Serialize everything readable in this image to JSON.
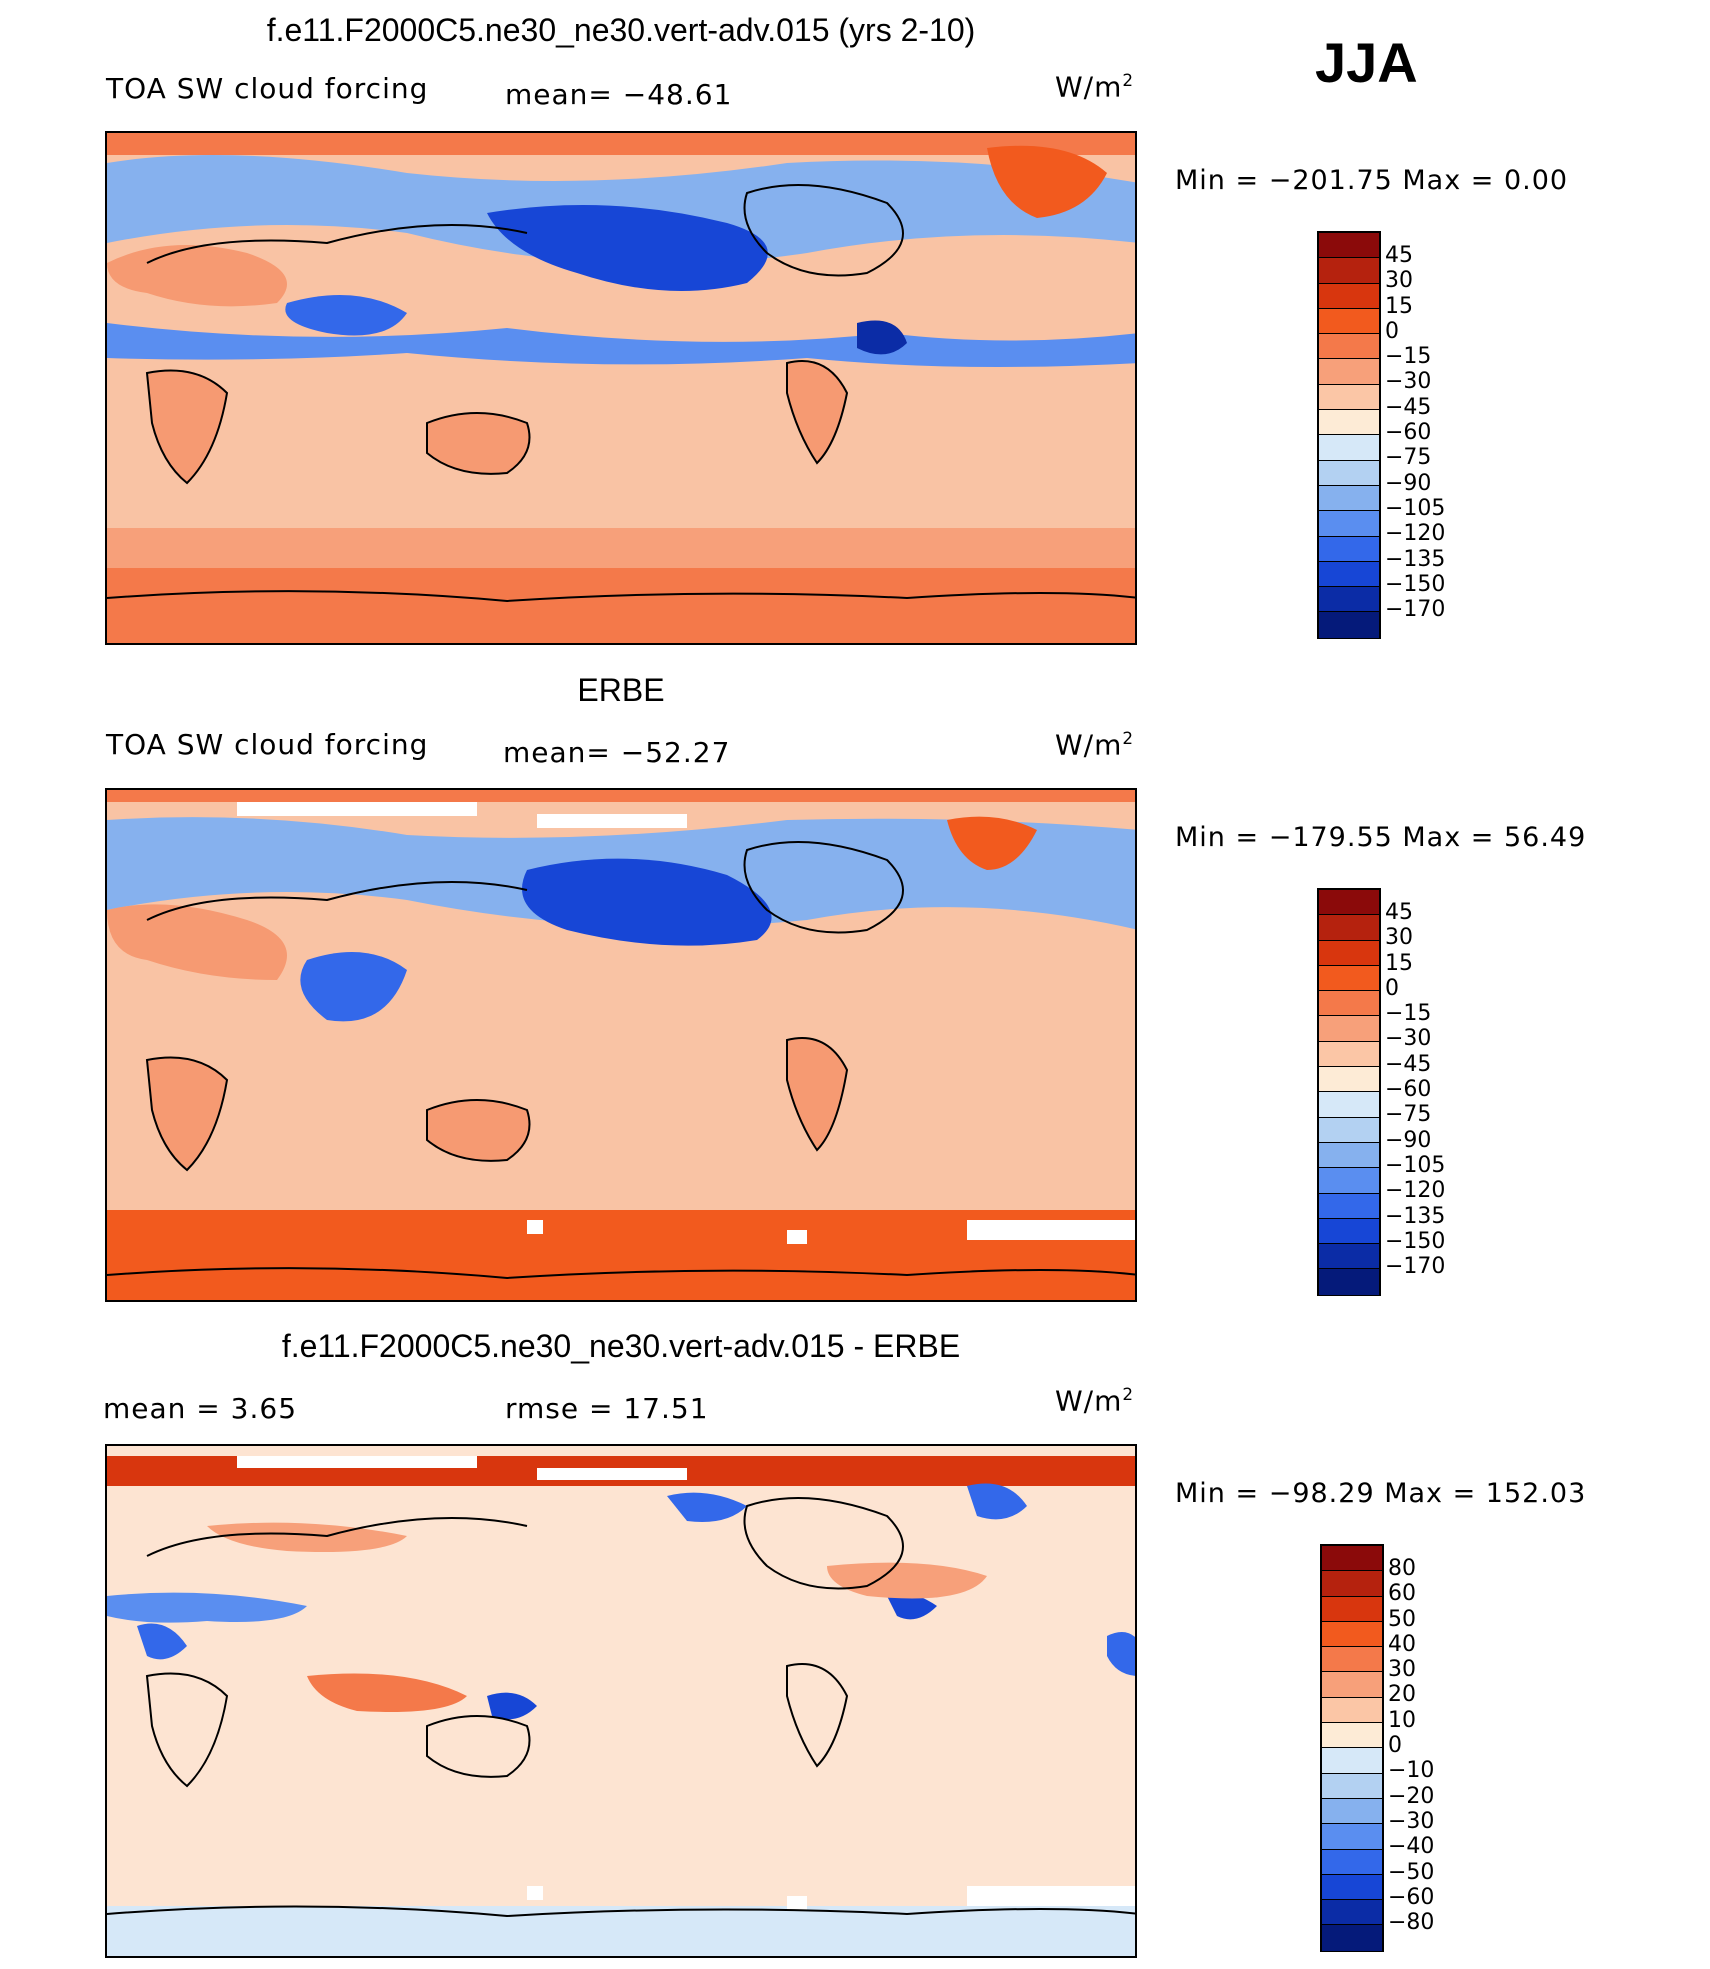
{
  "season": "JJA",
  "panels": [
    {
      "title": "f.e11.F2000C5.ne30_ne30.vert-adv.015 (yrs 2-10)",
      "left_label": "TOA SW cloud forcing",
      "center_label": "mean= −48.61",
      "units": "W/m",
      "units_sup": "2",
      "minmax": "Min = −201.75 Max = 0.00",
      "colorbar_labels": [
        "45",
        "30",
        "15",
        "0",
        "−15",
        "−30",
        "−45",
        "−60",
        "−75",
        "−90",
        "−105",
        "−120",
        "−135",
        "−150",
        "−170"
      ],
      "colorbar_colors": [
        "#8b0a0a",
        "#b5220e",
        "#d8360e",
        "#f25a1e",
        "#f4794a",
        "#f7a07a",
        "#fbc6a6",
        "#fdebd6",
        "#d6e8f8",
        "#b3d1f2",
        "#86b1ee",
        "#5a8ef0",
        "#3368ea",
        "#1746d6",
        "#0b2ca6",
        "#051a7a"
      ],
      "ocean_color": "#f9c3a4",
      "land_color": "#f69a72"
    },
    {
      "title": "ERBE",
      "left_label": "TOA SW cloud forcing",
      "center_label": "mean= −52.27",
      "units": "W/m",
      "units_sup": "2",
      "minmax": "Min = −179.55 Max = 56.49",
      "colorbar_labels": [
        "45",
        "30",
        "15",
        "0",
        "−15",
        "−30",
        "−45",
        "−60",
        "−75",
        "−90",
        "−105",
        "−120",
        "−135",
        "−150",
        "−170"
      ],
      "colorbar_colors": [
        "#8b0a0a",
        "#b5220e",
        "#d8360e",
        "#f25a1e",
        "#f4794a",
        "#f7a07a",
        "#fbc6a6",
        "#fdebd6",
        "#d6e8f8",
        "#b3d1f2",
        "#86b1ee",
        "#5a8ef0",
        "#3368ea",
        "#1746d6",
        "#0b2ca6",
        "#051a7a"
      ],
      "ocean_color": "#f9c3a4",
      "land_color": "#f69a72"
    },
    {
      "title": "f.e11.F2000C5.ne30_ne30.vert-adv.015 - ERBE",
      "left_label": "mean = 3.65",
      "center_label": "rmse = 17.51",
      "units": "W/m",
      "units_sup": "2",
      "minmax": "Min = −98.29 Max = 152.03",
      "colorbar_labels": [
        "80",
        "60",
        "50",
        "40",
        "30",
        "20",
        "10",
        "0",
        "−10",
        "−20",
        "−30",
        "−40",
        "−50",
        "−60",
        "−80"
      ],
      "colorbar_colors": [
        "#8b0a0a",
        "#b5220e",
        "#d8360e",
        "#f25a1e",
        "#f4794a",
        "#f7a07a",
        "#fbc6a6",
        "#fdebd6",
        "#d6e8f8",
        "#b3d1f2",
        "#86b1ee",
        "#5a8ef0",
        "#3368ea",
        "#1746d6",
        "#0b2ca6",
        "#051a7a"
      ],
      "ocean_color": "#fde4d2",
      "land_color": "#f9c3a4"
    }
  ]
}
